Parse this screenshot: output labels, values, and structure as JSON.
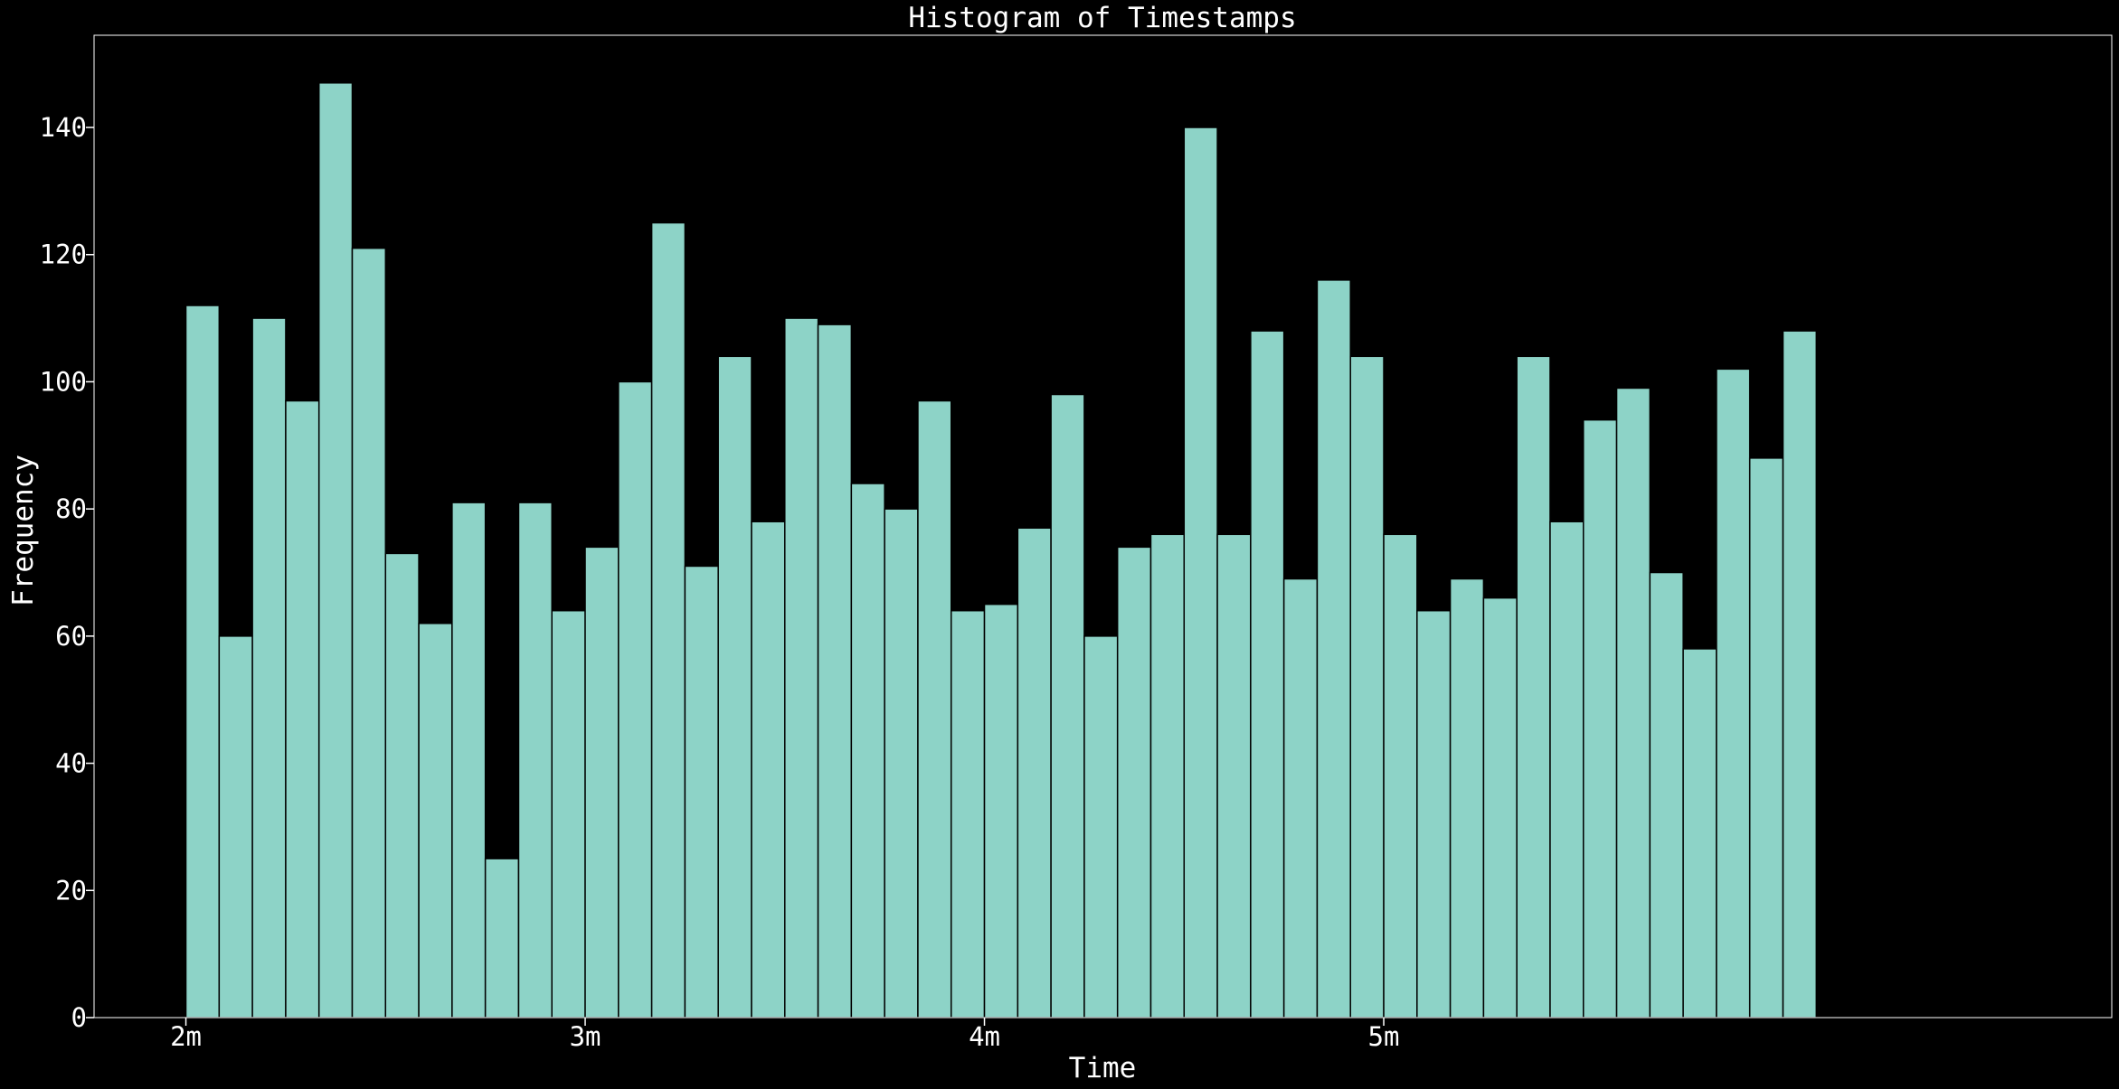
{
  "chart_data": {
    "type": "bar",
    "title": "Histogram of Timestamps",
    "xlabel": "Time",
    "ylabel": "Frequency",
    "x_ticks": [
      {
        "label": "2m",
        "value": 120
      },
      {
        "label": "3m",
        "value": 180
      },
      {
        "label": "4m",
        "value": 240
      },
      {
        "label": "5m",
        "value": 300
      }
    ],
    "y_ticks": [
      0,
      20,
      40,
      60,
      80,
      100,
      120,
      140
    ],
    "xlim": [
      106.2,
      409.4
    ],
    "ylim": [
      0,
      154.5
    ],
    "bin_start": 120,
    "bin_width": 5,
    "values": [
      112,
      60,
      110,
      97,
      147,
      121,
      73,
      62,
      81,
      25,
      81,
      64,
      74,
      100,
      125,
      71,
      104,
      78,
      110,
      109,
      84,
      80,
      97,
      64,
      65,
      77,
      98,
      60,
      74,
      76,
      140,
      76,
      108,
      69,
      116,
      104,
      76,
      64,
      69,
      66,
      104,
      78,
      94,
      99,
      70,
      58,
      102,
      88,
      108
    ],
    "grid": false,
    "colors": {
      "background": "#000000",
      "bar_fill": "#8dd3c7",
      "bar_edge": "#000000",
      "axes": "#ffffff",
      "text": "#ffffff"
    }
  }
}
